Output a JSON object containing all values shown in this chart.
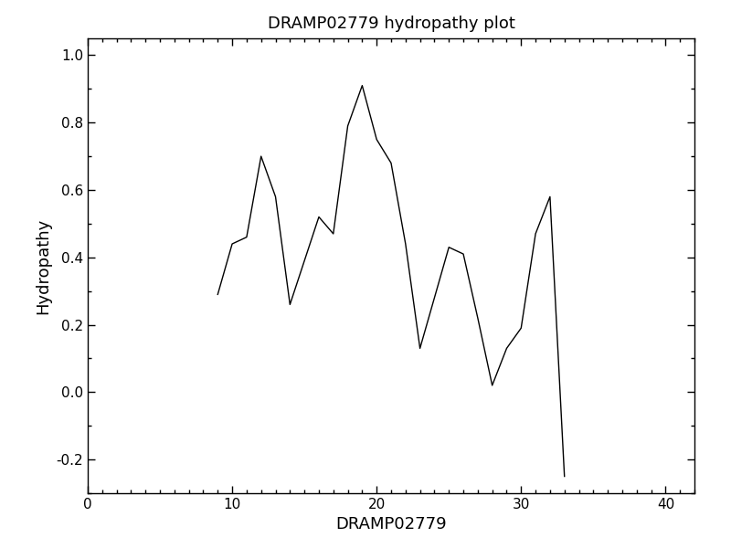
{
  "title": "DRAMP02779 hydropathy plot",
  "xlabel": "DRAMP02779",
  "ylabel": "Hydropathy",
  "xlim": [
    0,
    42
  ],
  "ylim": [
    -0.3,
    1.05
  ],
  "yticks": [
    -0.2,
    0.0,
    0.2,
    0.4,
    0.6,
    0.8,
    1.0
  ],
  "xticks": [
    0,
    10,
    20,
    30,
    40
  ],
  "line_color": "black",
  "line_width": 1.0,
  "bg_color": "white",
  "x": [
    9,
    10,
    11,
    12,
    13,
    14,
    15,
    16,
    17,
    18,
    19,
    20,
    21,
    22,
    23,
    24,
    25,
    26,
    27,
    28,
    29,
    30,
    31,
    32,
    33
  ],
  "y": [
    0.29,
    0.44,
    0.46,
    0.7,
    0.58,
    0.26,
    0.39,
    0.52,
    0.47,
    0.79,
    0.91,
    0.75,
    0.68,
    0.44,
    0.13,
    0.28,
    0.43,
    0.41,
    0.22,
    0.02,
    0.13,
    0.19,
    0.47,
    0.58,
    -0.25
  ]
}
